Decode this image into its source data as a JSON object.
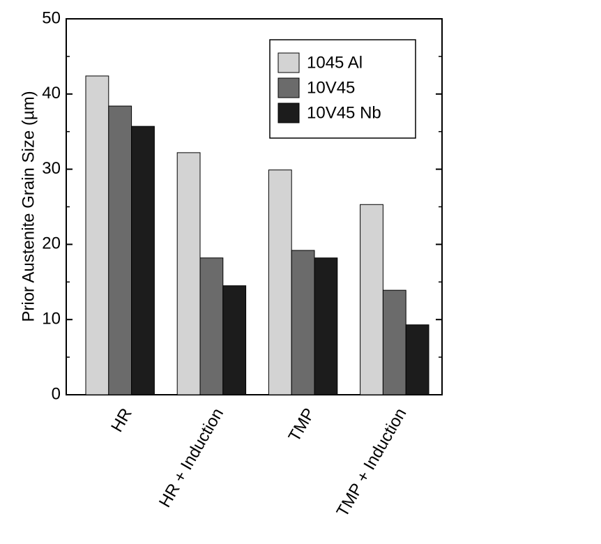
{
  "chart_data": {
    "type": "bar",
    "title": "",
    "xlabel": "",
    "ylabel": "Prior Austenite Grain Size (µm)",
    "ylim": [
      0,
      50
    ],
    "yticks": [
      0,
      10,
      20,
      30,
      40,
      50
    ],
    "categories": [
      "HR",
      "HR + Induction",
      "TMP",
      "TMP + Induction"
    ],
    "series": [
      {
        "name": "1045 Al",
        "color": "#d3d3d3",
        "values": [
          42.4,
          32.2,
          29.9,
          25.3
        ]
      },
      {
        "name": "10V45",
        "color": "#6b6b6b",
        "values": [
          38.4,
          18.2,
          19.2,
          13.9
        ]
      },
      {
        "name": "10V45 Nb",
        "color": "#1c1c1c",
        "values": [
          35.7,
          14.5,
          18.2,
          9.3
        ]
      }
    ],
    "legend_position": "top-right",
    "grid": false
  }
}
